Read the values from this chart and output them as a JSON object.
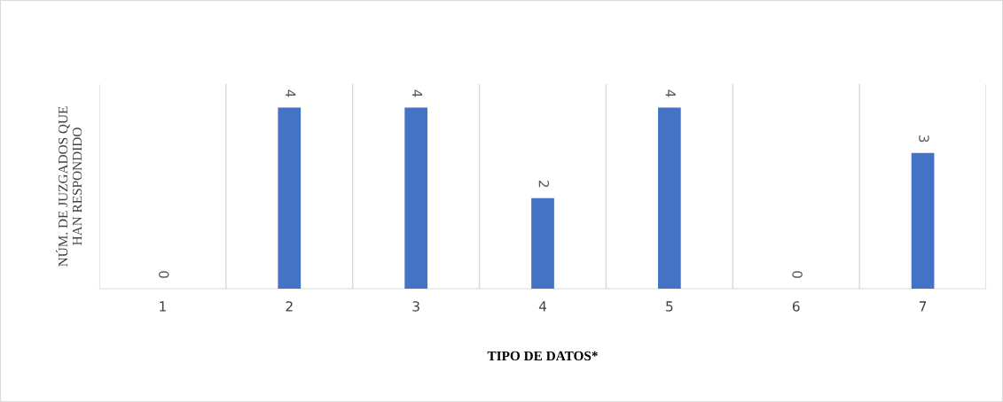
{
  "chart_data": {
    "type": "bar",
    "xlabel": "TIPO DE DATOS*",
    "ylabel": "NÚM. DE JUZGADOS QUE\nHAN RESPONDIDO",
    "categories": [
      "1",
      "2",
      "3",
      "4",
      "5",
      "6",
      "7"
    ],
    "values": [
      0,
      4,
      4,
      2,
      4,
      0,
      3
    ],
    "color": "#4472c4",
    "data_labels": true,
    "grid": "x",
    "tick_labels": "x"
  }
}
